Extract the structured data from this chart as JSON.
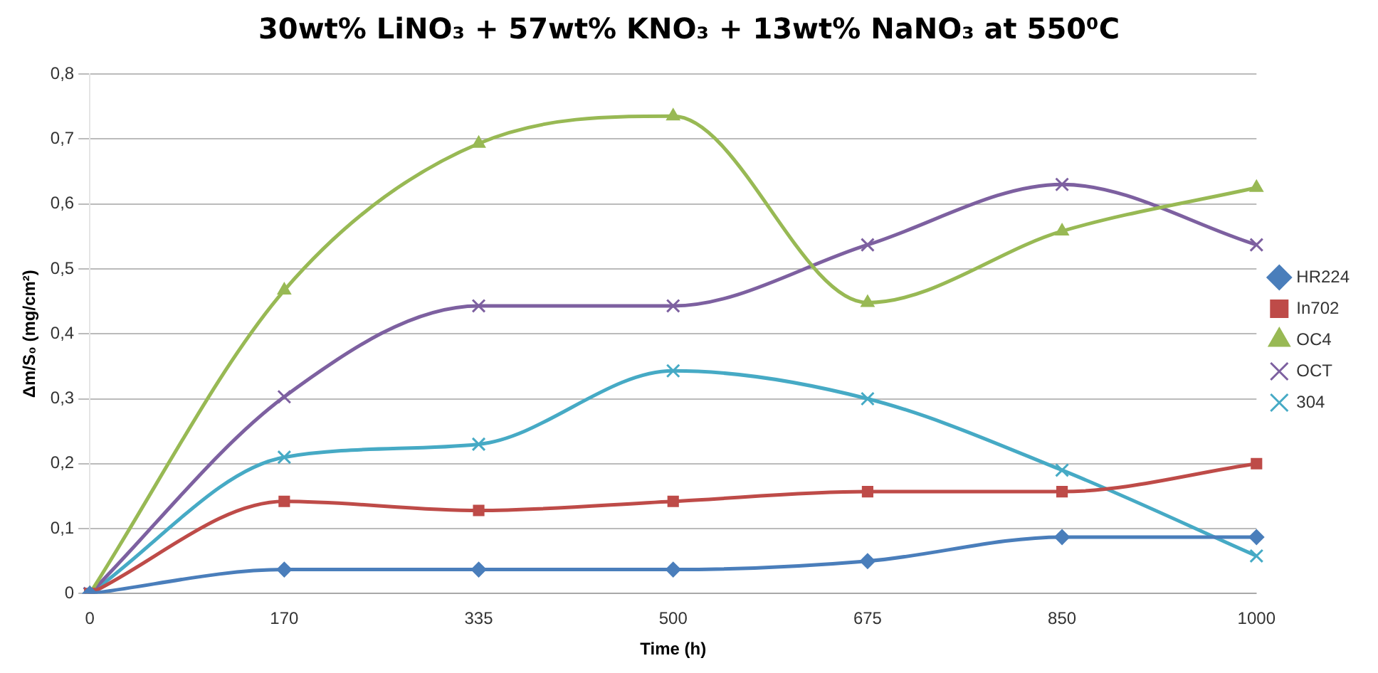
{
  "chart_data": {
    "type": "line",
    "title": "30wt% LiNO₃ + 57wt% KNO₃ + 13wt% NaNO₃ at 550⁰C",
    "xlabel": "Time (h)",
    "ylabel": "Δm/S₀ (mg/cm²)",
    "categories": [
      "0",
      "170",
      "335",
      "500",
      "675",
      "850",
      "1000"
    ],
    "series": [
      {
        "name": "HR224",
        "color": "#4a7ebb",
        "marker": "diamond",
        "values": [
          0,
          0.037,
          0.037,
          0.037,
          0.05,
          0.087,
          0.087
        ]
      },
      {
        "name": "In702",
        "color": "#be4b48",
        "marker": "square",
        "values": [
          0,
          0.142,
          0.128,
          0.142,
          0.157,
          0.157,
          0.2
        ]
      },
      {
        "name": "OC4",
        "color": "#98b954",
        "marker": "triangle",
        "values": [
          0,
          0.467,
          0.693,
          0.735,
          0.448,
          0.558,
          0.625
        ]
      },
      {
        "name": "OCT",
        "color": "#7d60a0",
        "marker": "cross",
        "values": [
          0,
          0.303,
          0.443,
          0.443,
          0.537,
          0.63,
          0.537
        ]
      },
      {
        "name": "304",
        "color": "#46aac5",
        "marker": "cross",
        "values": [
          0,
          0.21,
          0.23,
          0.343,
          0.3,
          0.19,
          0.058
        ]
      }
    ],
    "ylim": [
      0,
      0.8
    ],
    "yticks": [
      {
        "value": 0,
        "label": "0"
      },
      {
        "value": 0.1,
        "label": "0,1"
      },
      {
        "value": 0.2,
        "label": "0,2"
      },
      {
        "value": 0.3,
        "label": "0,3"
      },
      {
        "value": 0.4,
        "label": "0,4"
      },
      {
        "value": 0.5,
        "label": "0,5"
      },
      {
        "value": 0.6,
        "label": "0,6"
      },
      {
        "value": 0.7,
        "label": "0,7"
      },
      {
        "value": 0.8,
        "label": "0,8"
      }
    ],
    "grid": "y",
    "legend": "right",
    "line_style": "solid"
  }
}
